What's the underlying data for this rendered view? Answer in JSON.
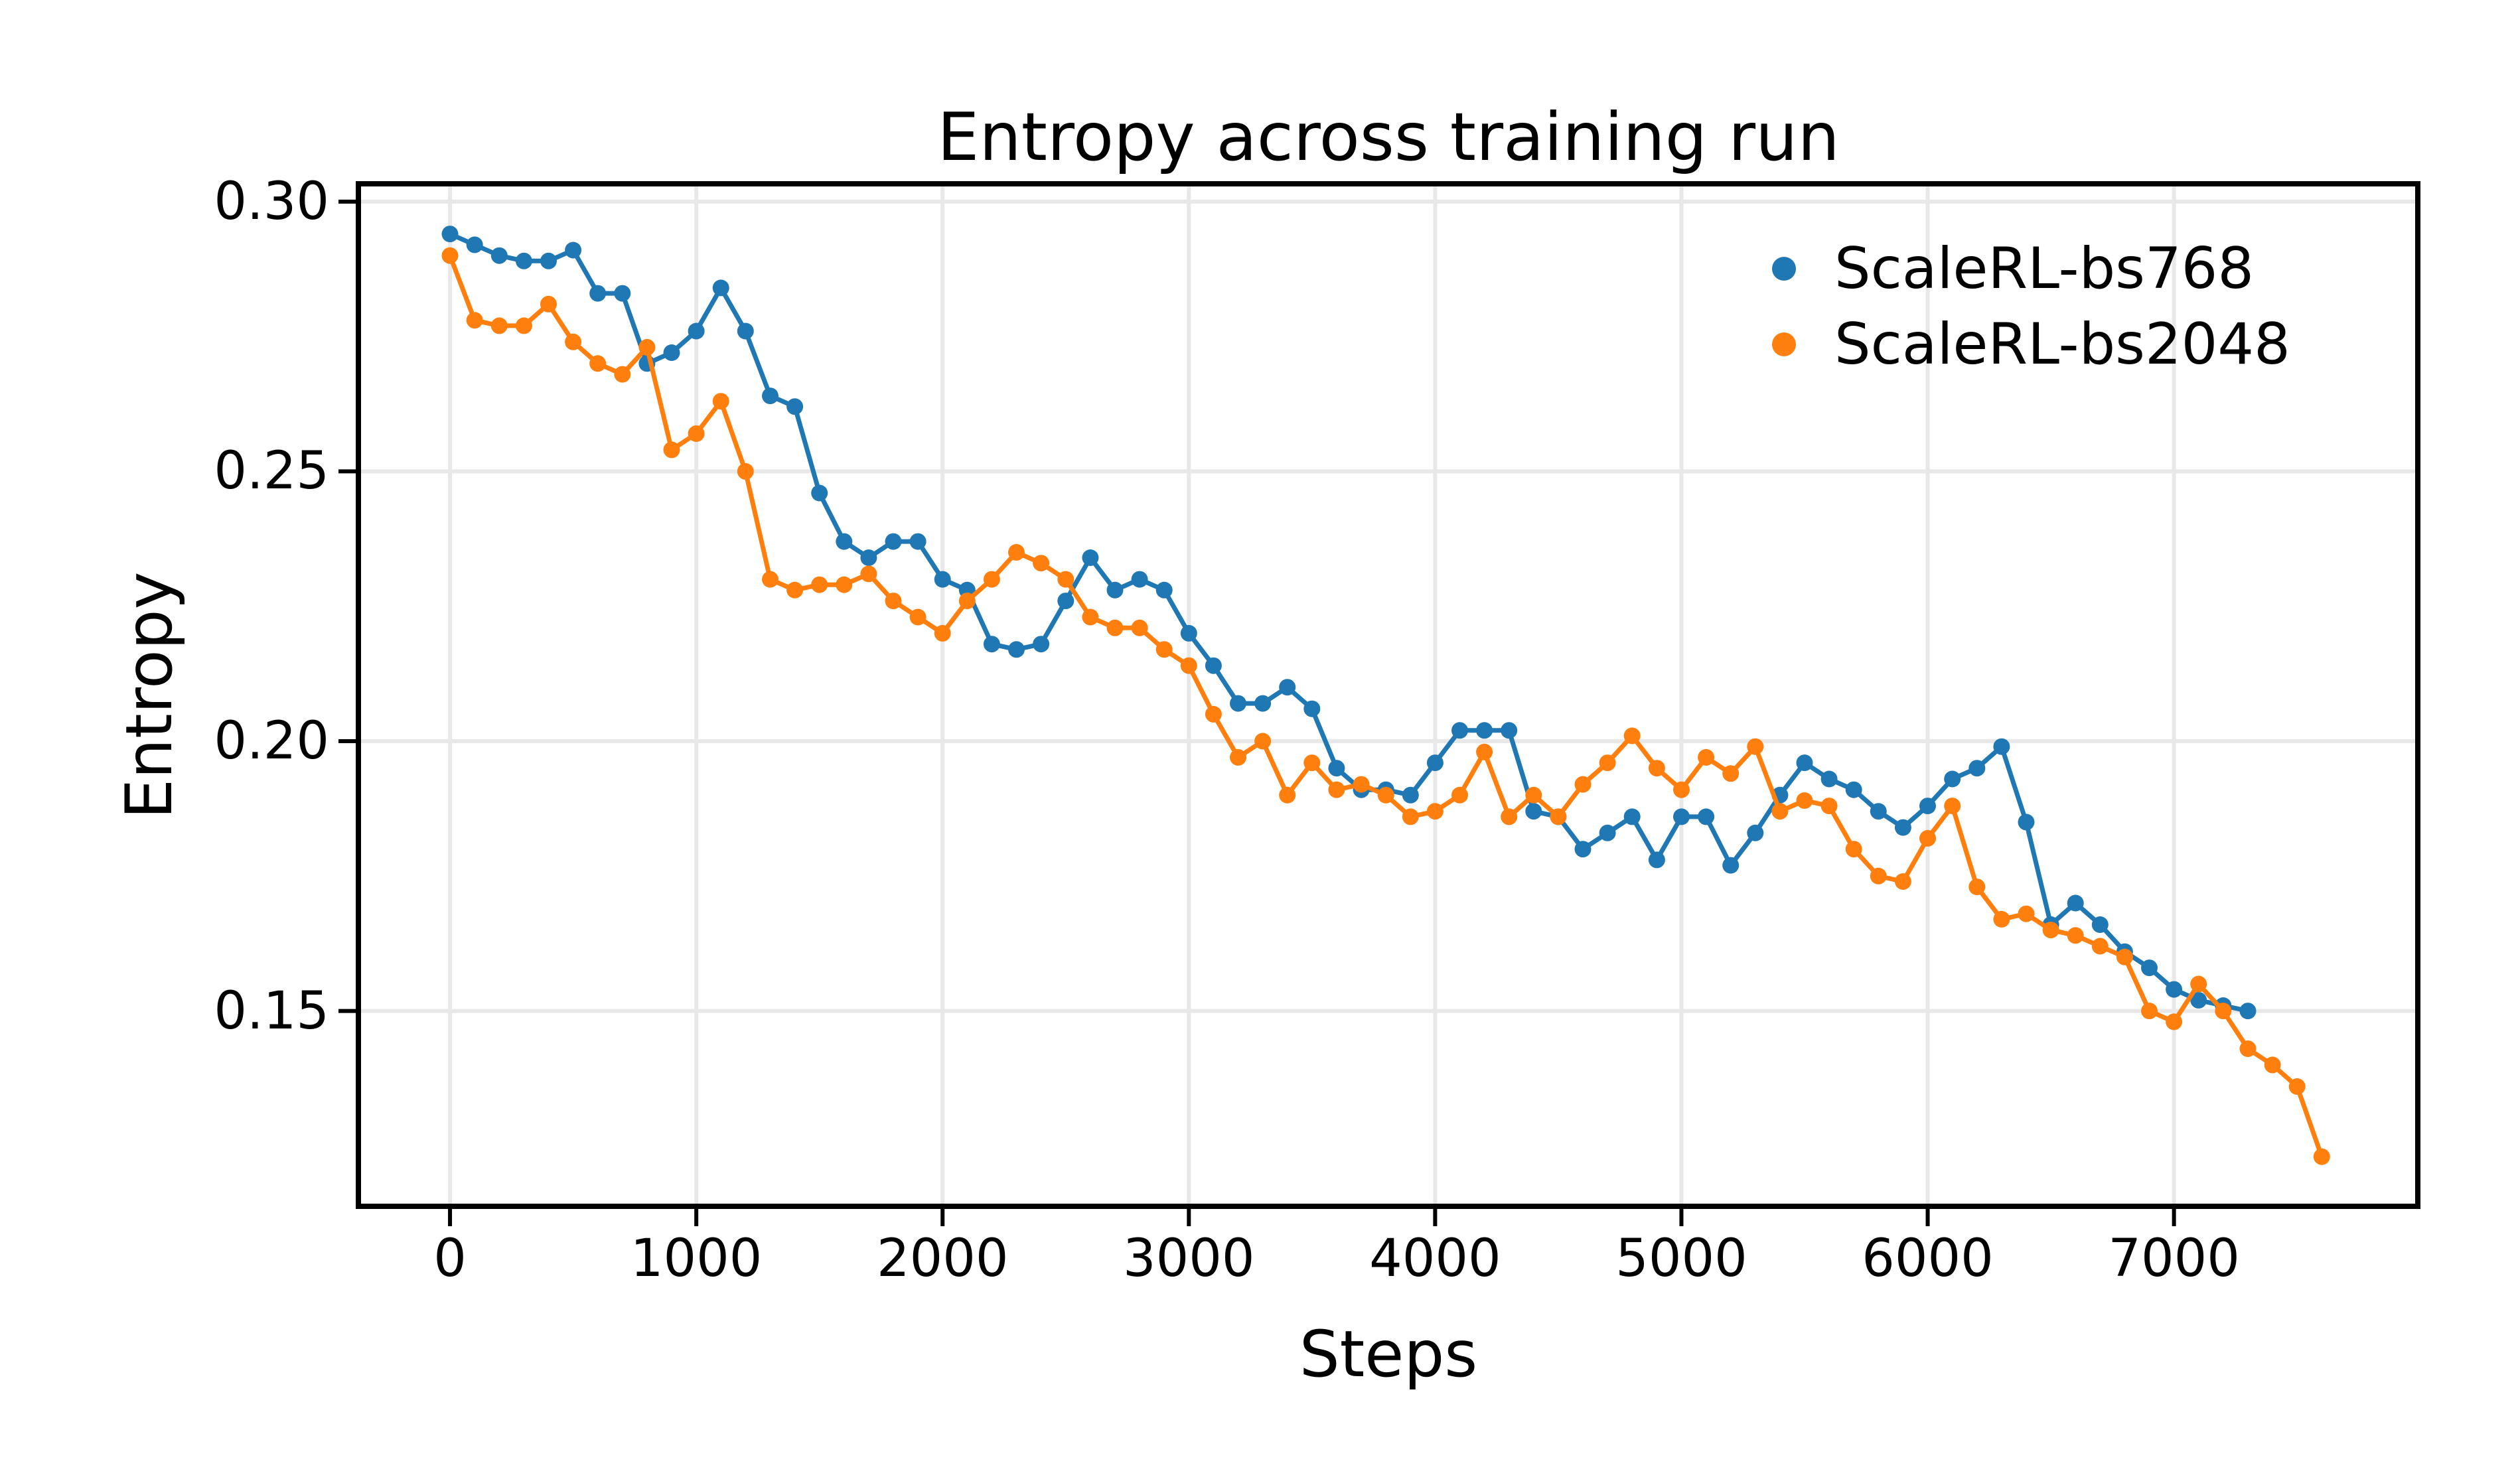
{
  "figure": {
    "title": "Entropy across training run",
    "xlabel": "Steps",
    "ylabel": "Entropy"
  },
  "legend": {
    "items": [
      {
        "label": "ScaleRL-bs768",
        "color": "#1f77b4"
      },
      {
        "label": "ScaleRL-bs2048",
        "color": "#ff7f0e"
      }
    ]
  },
  "chart_data": {
    "type": "line",
    "title": "Entropy across training run",
    "xlabel": "Steps",
    "ylabel": "Entropy",
    "xlim": [
      -372,
      7990
    ],
    "ylim": [
      0.1138,
      0.3033
    ],
    "xticks": [
      0,
      1000,
      2000,
      3000,
      4000,
      5000,
      6000,
      7000
    ],
    "xtick_labels": [
      "0",
      "1000",
      "2000",
      "3000",
      "4000",
      "5000",
      "6000",
      "7000"
    ],
    "yticks": [
      0.15,
      0.2,
      0.25,
      0.3
    ],
    "ytick_labels": [
      "0.15",
      "0.20",
      "0.25",
      "0.30"
    ],
    "grid": true,
    "grid_color": "#e8e8e8",
    "legend_position": "upper right",
    "marker": "circle",
    "series": [
      {
        "name": "ScaleRL-bs768",
        "color": "#1f77b4",
        "x": [
          0,
          100,
          200,
          300,
          400,
          500,
          600,
          700,
          800,
          900,
          1000,
          1100,
          1200,
          1300,
          1400,
          1500,
          1600,
          1700,
          1800,
          1900,
          2000,
          2100,
          2200,
          2300,
          2400,
          2500,
          2600,
          2700,
          2800,
          2900,
          3000,
          3100,
          3200,
          3300,
          3400,
          3500,
          3600,
          3700,
          3800,
          3900,
          4000,
          4100,
          4200,
          4300,
          4400,
          4500,
          4600,
          4700,
          4800,
          4900,
          5000,
          5100,
          5200,
          5300,
          5400,
          5500,
          5600,
          5700,
          5800,
          5900,
          6000,
          6100,
          6200,
          6300,
          6400,
          6500,
          6600,
          6700,
          6800,
          6900,
          7000,
          7100,
          7200,
          7300
        ],
        "values": [
          0.294,
          0.292,
          0.29,
          0.289,
          0.289,
          0.291,
          0.283,
          0.283,
          0.27,
          0.272,
          0.276,
          0.284,
          0.276,
          0.264,
          0.262,
          0.246,
          0.237,
          0.234,
          0.237,
          0.237,
          0.23,
          0.228,
          0.218,
          0.217,
          0.218,
          0.226,
          0.234,
          0.228,
          0.23,
          0.228,
          0.22,
          0.214,
          0.207,
          0.207,
          0.21,
          0.206,
          0.195,
          0.191,
          0.191,
          0.19,
          0.196,
          0.202,
          0.202,
          0.202,
          0.187,
          0.186,
          0.18,
          0.183,
          0.186,
          0.178,
          0.186,
          0.186,
          0.177,
          0.183,
          0.19,
          0.196,
          0.193,
          0.191,
          0.187,
          0.184,
          0.188,
          0.193,
          0.195,
          0.199,
          0.185,
          0.166,
          0.17,
          0.166,
          0.161,
          0.158,
          0.154,
          0.152,
          0.151,
          0.15
        ]
      },
      {
        "name": "ScaleRL-bs2048",
        "color": "#ff7f0e",
        "x": [
          0,
          100,
          200,
          300,
          400,
          500,
          600,
          700,
          800,
          900,
          1000,
          1100,
          1200,
          1300,
          1400,
          1500,
          1600,
          1700,
          1800,
          1900,
          2000,
          2100,
          2200,
          2300,
          2400,
          2500,
          2600,
          2700,
          2800,
          2900,
          3000,
          3100,
          3200,
          3300,
          3400,
          3500,
          3600,
          3700,
          3800,
          3900,
          4000,
          4100,
          4200,
          4300,
          4400,
          4500,
          4600,
          4700,
          4800,
          4900,
          5000,
          5100,
          5200,
          5300,
          5400,
          5500,
          5600,
          5700,
          5800,
          5900,
          6000,
          6100,
          6200,
          6300,
          6400,
          6500,
          6600,
          6700,
          6800,
          6900,
          7000,
          7100,
          7200,
          7300,
          7400,
          7500,
          7600
        ],
        "values": [
          0.29,
          0.278,
          0.277,
          0.277,
          0.281,
          0.274,
          0.27,
          0.268,
          0.273,
          0.254,
          0.257,
          0.263,
          0.25,
          0.23,
          0.228,
          0.229,
          0.229,
          0.231,
          0.226,
          0.223,
          0.22,
          0.226,
          0.23,
          0.235,
          0.233,
          0.23,
          0.223,
          0.221,
          0.221,
          0.217,
          0.214,
          0.205,
          0.197,
          0.2,
          0.19,
          0.196,
          0.191,
          0.192,
          0.19,
          0.186,
          0.187,
          0.19,
          0.198,
          0.186,
          0.19,
          0.186,
          0.192,
          0.196,
          0.201,
          0.195,
          0.191,
          0.197,
          0.194,
          0.199,
          0.187,
          0.189,
          0.188,
          0.18,
          0.175,
          0.174,
          0.182,
          0.188,
          0.173,
          0.167,
          0.168,
          0.165,
          0.164,
          0.162,
          0.16,
          0.15,
          0.148,
          0.155,
          0.15,
          0.143,
          0.14,
          0.136,
          0.123
        ]
      }
    ]
  }
}
